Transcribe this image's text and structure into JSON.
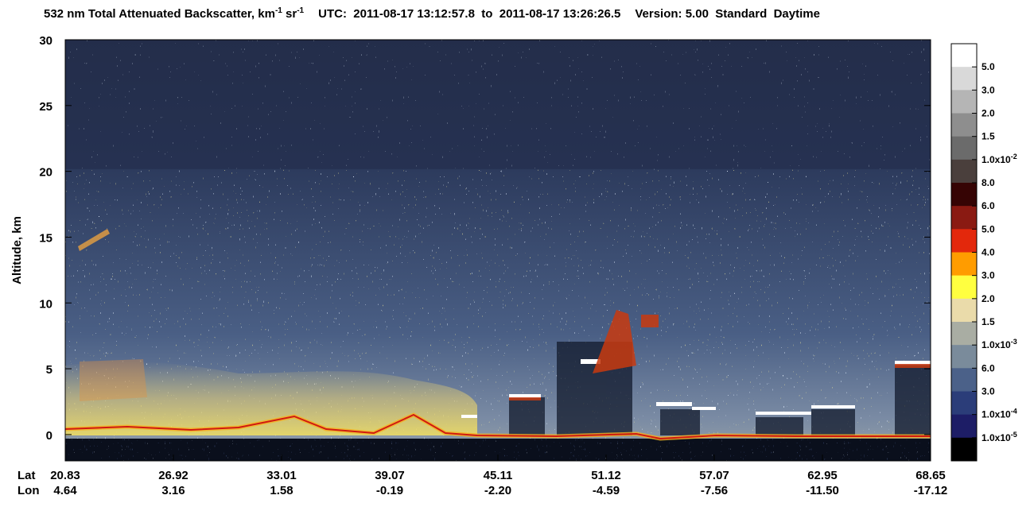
{
  "chart_data": {
    "type": "curtain",
    "title": {
      "name": "532 nm Total Attenuated Backscatter, ",
      "units": [
        {
          "text": "km",
          "sup": "-1"
        },
        {
          "text": " sr",
          "sup": "-1"
        }
      ],
      "time": "UTC:  2011-08-17 13:12:57.8  to  2011-08-17 13:26:26.5",
      "version": "Version: 5.00  Standard  Daytime"
    },
    "y_label": "Altitude, km",
    "ylim": [
      -2,
      30
    ],
    "yticks": [
      0,
      5,
      10,
      15,
      20,
      25,
      30
    ],
    "x_rows": [
      {
        "name": "Lat",
        "labels": [
          "20.83",
          "26.92",
          "33.01",
          "39.07",
          "45.11",
          "51.12",
          "57.07",
          "62.95",
          "68.65"
        ]
      },
      {
        "name": "Lon",
        "labels": [
          "4.64",
          "3.16",
          "1.58",
          "-0.19",
          "-2.20",
          "-4.59",
          "-7.56",
          "-11.50",
          "-17.12"
        ]
      }
    ],
    "colorbar": {
      "colors": [
        "#ffffff",
        "#d9d9d9",
        "#b5b5b5",
        "#8e8e8e",
        "#6b6b6b",
        "#4a3f3c",
        "#360404",
        "#8a1a12",
        "#e3280c",
        "#ff9c00",
        "#ffff40",
        "#eadbaa",
        "#a9ada3",
        "#7a8b9b",
        "#4b6189",
        "#2b3d79",
        "#1d1d66",
        "#000000"
      ],
      "labels": [
        {
          "text": "5.0"
        },
        {
          "text": "3.0"
        },
        {
          "text": "2.0"
        },
        {
          "text": "1.5"
        },
        {
          "text": "1.0x10",
          "sup": "-2"
        },
        {
          "text": "8.0"
        },
        {
          "text": "6.0"
        },
        {
          "text": "5.0"
        },
        {
          "text": "4.0"
        },
        {
          "text": "3.0"
        },
        {
          "text": "2.0"
        },
        {
          "text": "1.5"
        },
        {
          "text": "1.0x10",
          "sup": "-3"
        },
        {
          "text": "6.0"
        },
        {
          "text": "3.0"
        },
        {
          "text": "1.0x10",
          "sup": "-4"
        },
        {
          "text": "1.0x10",
          "sup": "-5"
        }
      ]
    }
  }
}
